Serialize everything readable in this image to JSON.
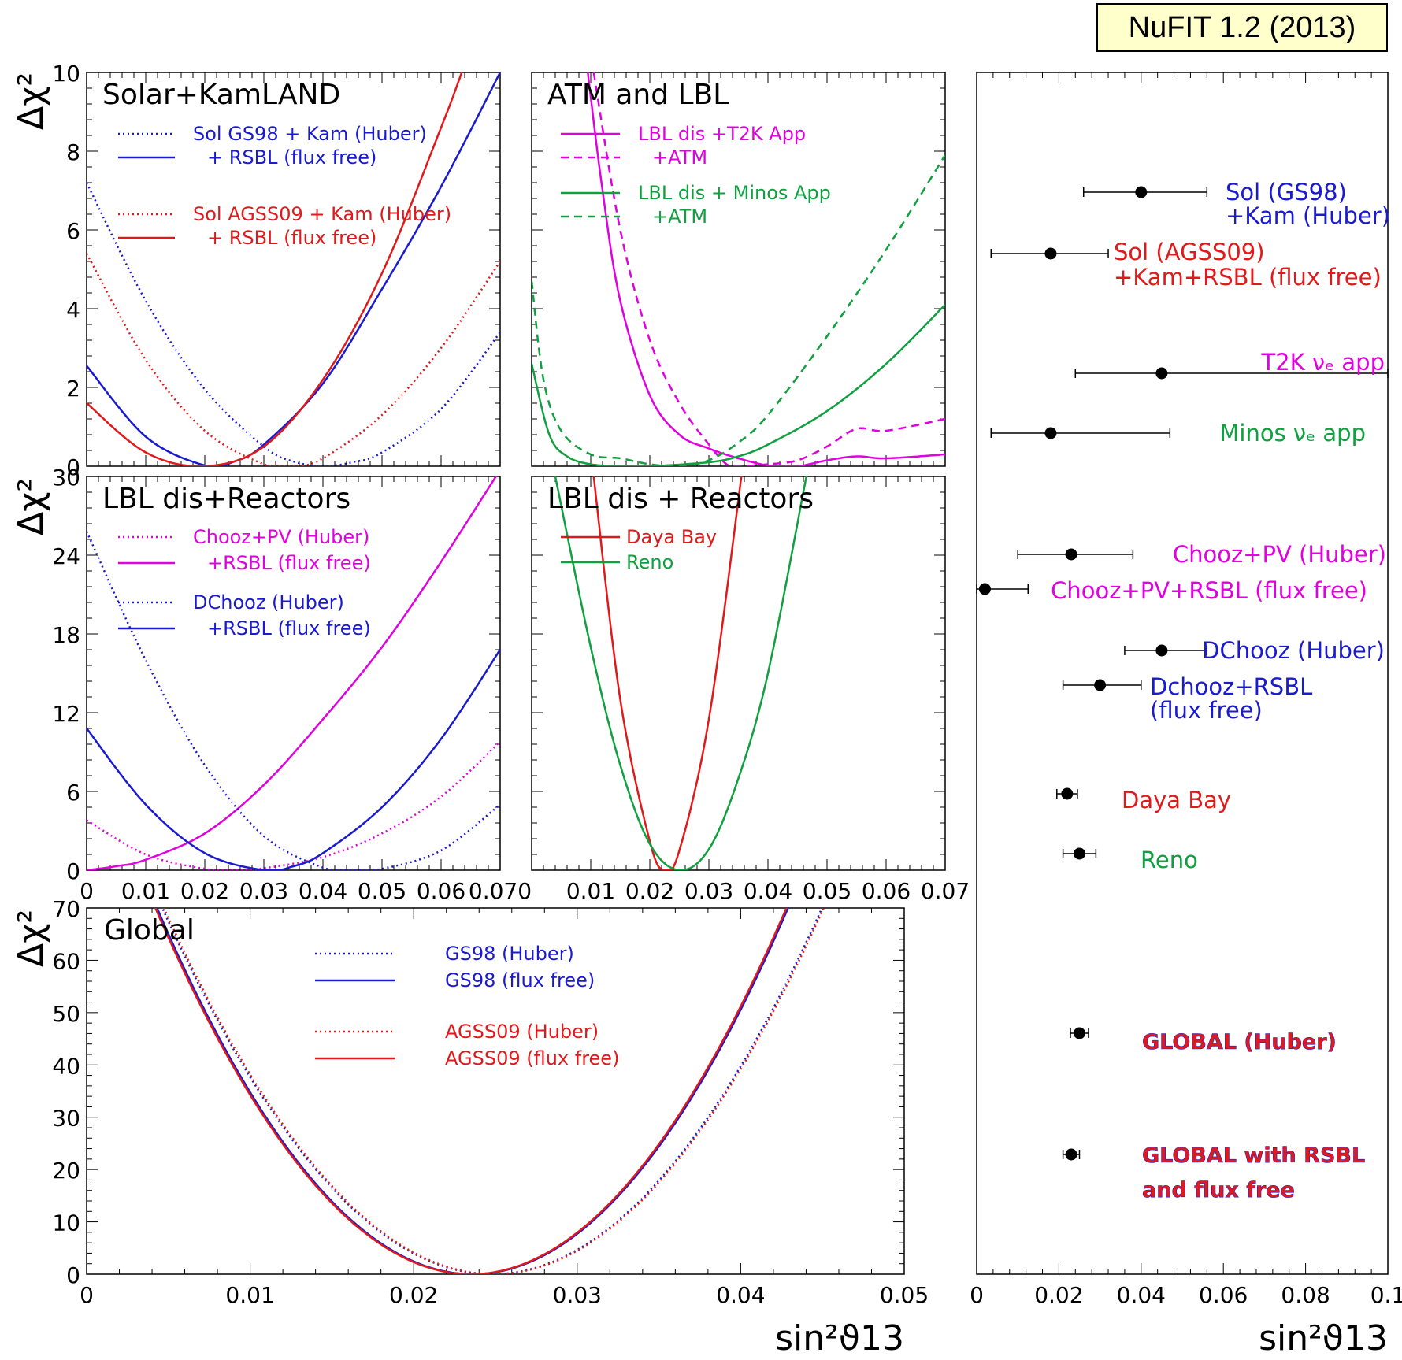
{
  "version_tag": "NuFIT 1.2 (2013)",
  "colors": {
    "blue": "#1a1ad0",
    "red": "#e01a1a",
    "magenta": "#e000e0",
    "green": "#10a040",
    "black": "#000000"
  },
  "chart_data": [
    {
      "id": "solar",
      "type": "line",
      "title": "Solar+KamLAND",
      "ylabel": "Δχ²",
      "xlim": [
        0,
        0.07
      ],
      "ylim": [
        0,
        10
      ],
      "yticks": [
        "0",
        "2",
        "4",
        "6",
        "8",
        "10"
      ],
      "legend": [
        {
          "text": "Sol GS98 + Kam (Huber)",
          "color": "#1a1ad0",
          "style": "dotted"
        },
        {
          "text": "+ RSBL (flux free)",
          "color": "#1a1ad0",
          "style": "solid"
        },
        {
          "text": "Sol AGSS09 + Kam (Huber)",
          "color": "#e01a1a",
          "style": "dotted"
        },
        {
          "text": "+ RSBL (flux free)",
          "color": "#e01a1a",
          "style": "solid"
        }
      ],
      "series": [
        {
          "name": "Sol GS98 + Kam (Huber)",
          "color": "#1a1ad0",
          "style": "dotted",
          "x": [
            0,
            0.01,
            0.02,
            0.03,
            0.035,
            0.04,
            0.045,
            0.05,
            0.06,
            0.07
          ],
          "y": [
            7.2,
            4.2,
            1.95,
            0.5,
            0.12,
            0.0,
            0.1,
            0.35,
            1.45,
            3.4
          ]
        },
        {
          "name": "+ RSBL (flux free)",
          "color": "#1a1ad0",
          "style": "solid",
          "x": [
            0,
            0.01,
            0.02,
            0.025,
            0.03,
            0.04,
            0.05,
            0.06,
            0.07
          ],
          "y": [
            2.55,
            0.75,
            0.02,
            0.12,
            0.55,
            2.1,
            4.5,
            7.1,
            10.0
          ]
        },
        {
          "name": "Sol AGSS09 + Kam (Huber)",
          "color": "#e01a1a",
          "style": "dotted",
          "x": [
            0,
            0.01,
            0.02,
            0.03,
            0.035,
            0.04,
            0.05,
            0.06,
            0.07
          ],
          "y": [
            5.4,
            2.7,
            0.9,
            0.05,
            0.0,
            0.2,
            1.3,
            3.0,
            5.2
          ]
        },
        {
          "name": "+ RSBL (flux free)",
          "color": "#e01a1a",
          "style": "solid",
          "x": [
            0,
            0.01,
            0.02,
            0.03,
            0.04,
            0.05,
            0.06,
            0.0635
          ],
          "y": [
            1.6,
            0.35,
            0.0,
            0.5,
            2.2,
            4.9,
            8.6,
            10.0
          ]
        }
      ]
    },
    {
      "id": "atm",
      "type": "line",
      "title": "ATM  and LBL",
      "xlim": [
        0,
        0.07
      ],
      "ylim": [
        0,
        10
      ],
      "legend": [
        {
          "text": "LBL dis +T2K App",
          "color": "#e000e0",
          "style": "solid"
        },
        {
          "text": "+ATM",
          "color": "#e000e0",
          "style": "dashed"
        },
        {
          "text": "LBL dis + Minos App",
          "color": "#10a040",
          "style": "solid"
        },
        {
          "text": "+ATM",
          "color": "#10a040",
          "style": "dashed"
        }
      ],
      "series": [
        {
          "name": "LBL dis +T2K App",
          "color": "#e000e0",
          "style": "solid",
          "x": [
            0.0095,
            0.012,
            0.015,
            0.02,
            0.025,
            0.03,
            0.035,
            0.04,
            0.045,
            0.05,
            0.055,
            0.06,
            0.07
          ],
          "y": [
            10.0,
            7.0,
            4.2,
            1.8,
            0.8,
            0.45,
            0.2,
            0.02,
            0.0,
            0.15,
            0.25,
            0.2,
            0.3
          ]
        },
        {
          "name": "+ATM",
          "color": "#e000e0",
          "style": "dashed",
          "x": [
            0.0105,
            0.015,
            0.02,
            0.025,
            0.03,
            0.033,
            0.035,
            0.04,
            0.045,
            0.05,
            0.055,
            0.06,
            0.07
          ],
          "y": [
            10.0,
            6.0,
            3.2,
            1.6,
            0.55,
            0.05,
            0.0,
            0.05,
            0.15,
            0.5,
            0.95,
            0.9,
            1.2
          ]
        },
        {
          "name": "LBL dis + Minos App",
          "color": "#10a040",
          "style": "solid",
          "x": [
            0,
            0.003,
            0.006,
            0.01,
            0.015,
            0.02,
            0.03,
            0.035,
            0.04,
            0.05,
            0.06,
            0.07
          ],
          "y": [
            2.6,
            0.8,
            0.25,
            0.05,
            0.0,
            0.0,
            0.1,
            0.25,
            0.55,
            1.4,
            2.6,
            4.1
          ]
        },
        {
          "name": "+ATM",
          "color": "#10a040",
          "style": "dashed",
          "x": [
            0,
            0.002,
            0.005,
            0.01,
            0.015,
            0.02,
            0.025,
            0.03,
            0.035,
            0.04,
            0.05,
            0.06,
            0.07
          ],
          "y": [
            4.7,
            2.2,
            0.9,
            0.3,
            0.2,
            0.05,
            0.0,
            0.15,
            0.6,
            1.3,
            3.3,
            5.5,
            7.9
          ]
        }
      ]
    },
    {
      "id": "lbl_reactors",
      "type": "line",
      "title": "LBL dis+Reactors",
      "ylabel": "Δχ²",
      "xlim": [
        0,
        0.07
      ],
      "ylim": [
        0,
        30
      ],
      "yticks": [
        "0",
        "6",
        "12",
        "18",
        "24",
        "30"
      ],
      "xticks": [
        "0",
        "0.01",
        "0.02",
        "0.03",
        "0.04",
        "0.05",
        "0.06",
        "0.070"
      ],
      "legend": [
        {
          "text": "Chooz+PV (Huber)",
          "color": "#e000e0",
          "style": "dotted"
        },
        {
          "text": "+RSBL (flux free)",
          "color": "#e000e0",
          "style": "solid"
        },
        {
          "text": "DChooz (Huber)",
          "color": "#1a1ad0",
          "style": "dotted"
        },
        {
          "text": "+RSBL (flux free)",
          "color": "#1a1ad0",
          "style": "solid"
        }
      ],
      "series": [
        {
          "name": "Chooz+PV (Huber)",
          "color": "#e000e0",
          "style": "dotted",
          "x": [
            0,
            0.01,
            0.02,
            0.025,
            0.03,
            0.04,
            0.05,
            0.06,
            0.07
          ],
          "y": [
            3.8,
            1.2,
            0.1,
            0.0,
            0.15,
            1.0,
            2.8,
            5.6,
            9.8
          ]
        },
        {
          "name": "+RSBL (flux free)",
          "color": "#e000e0",
          "style": "solid",
          "x": [
            0,
            0.005,
            0.01,
            0.02,
            0.03,
            0.04,
            0.05,
            0.06,
            0.07
          ],
          "y": [
            0.0,
            0.3,
            0.8,
            2.8,
            6.5,
            11.5,
            17.0,
            23.5,
            30.5
          ]
        },
        {
          "name": "DChooz (Huber)",
          "color": "#1a1ad0",
          "style": "dotted",
          "x": [
            0,
            0.01,
            0.02,
            0.03,
            0.04,
            0.045,
            0.05,
            0.06,
            0.07
          ],
          "y": [
            25.8,
            16.0,
            8.0,
            2.6,
            0.2,
            0.0,
            0.1,
            1.5,
            5.0
          ]
        },
        {
          "name": "+RSBL (flux free)",
          "color": "#1a1ad0",
          "style": "solid",
          "x": [
            0,
            0.01,
            0.02,
            0.03,
            0.035,
            0.04,
            0.05,
            0.06,
            0.07
          ],
          "y": [
            10.8,
            5.0,
            1.3,
            0.0,
            0.3,
            1.3,
            4.8,
            10.0,
            16.8
          ]
        }
      ]
    },
    {
      "id": "reactors",
      "type": "line",
      "title": "LBL dis + Reactors",
      "xlim": [
        0,
        0.07
      ],
      "ylim": [
        0,
        30
      ],
      "xticks": [
        "0.01",
        "0.02",
        "0.03",
        "0.04",
        "0.05",
        "0.06",
        "0.07"
      ],
      "legend": [
        {
          "text": "Daya Bay",
          "color": "#e01a1a",
          "style": "solid"
        },
        {
          "text": "Reno",
          "color": "#10a040",
          "style": "solid"
        }
      ],
      "series": [
        {
          "name": "Daya Bay",
          "color": "#e01a1a",
          "style": "solid",
          "x": [
            0.0105,
            0.015,
            0.02,
            0.0225,
            0.025,
            0.03,
            0.0355
          ],
          "y": [
            30,
            13,
            2.2,
            0,
            1.5,
            11.5,
            30
          ]
        },
        {
          "name": "Reno",
          "color": "#10a040",
          "style": "solid",
          "x": [
            0.004,
            0.01,
            0.015,
            0.02,
            0.025,
            0.03,
            0.035,
            0.04,
            0.0465
          ],
          "y": [
            30,
            17,
            8,
            2,
            0,
            1.6,
            7,
            15,
            30
          ]
        }
      ]
    },
    {
      "id": "global",
      "type": "line",
      "title": "Global",
      "ylabel": "Δχ²",
      "xlabel": "sin²ϑ13",
      "xlim": [
        0,
        0.05
      ],
      "ylim": [
        0,
        70
      ],
      "yticks": [
        "0",
        "10",
        "20",
        "30",
        "40",
        "50",
        "60",
        "70"
      ],
      "xticks": [
        "0",
        "0.01",
        "0.02",
        "0.03",
        "0.04",
        "0.05"
      ],
      "legend": [
        {
          "text": "GS98 (Huber)",
          "color": "#1a1ad0",
          "style": "dotted"
        },
        {
          "text": "GS98 (flux free)",
          "color": "#1a1ad0",
          "style": "solid"
        },
        {
          "text": "AGSS09 (Huber)",
          "color": "#e01a1a",
          "style": "dotted"
        },
        {
          "text": "AGSS09 (flux free)",
          "color": "#e01a1a",
          "style": "solid"
        }
      ],
      "series": [
        {
          "name": "GS98 (Huber)",
          "color": "#1a1ad0",
          "style": "dotted",
          "min_x": 0.0248,
          "curvature": 172000,
          "x_range": [
            0.0,
            0.05
          ],
          "y_cap": 70
        },
        {
          "name": "GS98 (flux free)",
          "color": "#1a1ad0",
          "style": "solid",
          "min_x": 0.0236,
          "curvature": 188000,
          "x_range": [
            0.0,
            0.05
          ],
          "y_cap": 70
        },
        {
          "name": "AGSS09 (Huber)",
          "color": "#e01a1a",
          "style": "dotted",
          "min_x": 0.0249,
          "curvature": 172000,
          "x_range": [
            0.0,
            0.05
          ],
          "y_cap": 70
        },
        {
          "name": "AGSS09 (flux free)",
          "color": "#e01a1a",
          "style": "solid",
          "min_x": 0.0235,
          "curvature": 188000,
          "x_range": [
            0.0,
            0.05
          ],
          "y_cap": 70
        }
      ]
    },
    {
      "id": "summary",
      "type": "scatter",
      "xlabel": "sin²ϑ13",
      "xlim": [
        0,
        0.1
      ],
      "xticks": [
        "0",
        "0.02",
        "0.04",
        "0.06",
        "0.08",
        "0.1"
      ],
      "points": [
        {
          "label": [
            "Sol (GS98)",
            "+Kam (Huber)"
          ],
          "color": "#1a1ad0",
          "x": 0.04,
          "lo": 0.026,
          "hi": 0.056
        },
        {
          "label": [
            "Sol (AGSS09)",
            "+Kam+RSBL (flux free)"
          ],
          "color": "#e01a1a",
          "x": 0.018,
          "lo": 0.0035,
          "hi": 0.032
        },
        {
          "label": [
            "T2K νₑ app"
          ],
          "color": "#e000e0",
          "x": 0.045,
          "lo": 0.024,
          "hi": 0.1
        },
        {
          "label": [
            "Minos νₑ app"
          ],
          "color": "#10a040",
          "x": 0.018,
          "lo": 0.0035,
          "hi": 0.047
        },
        {
          "label": [
            "Chooz+PV (Huber)"
          ],
          "color": "#e000e0",
          "x": 0.023,
          "lo": 0.01,
          "hi": 0.038
        },
        {
          "label": [
            "Chooz+PV+RSBL (flux free)"
          ],
          "color": "#e000e0",
          "x": 0.002,
          "lo": 0.0,
          "hi": 0.0125
        },
        {
          "label": [
            "DChooz (Huber)"
          ],
          "color": "#1a1ad0",
          "x": 0.045,
          "lo": 0.036,
          "hi": 0.056
        },
        {
          "label": [
            "Dchooz+RSBL",
            "(flux free)"
          ],
          "color": "#1a1ad0",
          "x": 0.03,
          "lo": 0.021,
          "hi": 0.04
        },
        {
          "label": [
            "Daya Bay"
          ],
          "color": "#e01a1a",
          "x": 0.022,
          "lo": 0.0195,
          "hi": 0.0245
        },
        {
          "label": [
            "Reno"
          ],
          "color": "#10a040",
          "x": 0.025,
          "lo": 0.021,
          "hi": 0.029
        },
        {
          "label": [
            "GLOBAL (Huber)"
          ],
          "color": "#e01a1a",
          "x": 0.025,
          "lo": 0.0228,
          "hi": 0.0272
        },
        {
          "label": [
            "GLOBAL with RSBL",
            "and flux free"
          ],
          "color": "#e01a1a",
          "x": 0.023,
          "lo": 0.021,
          "hi": 0.025
        }
      ]
    }
  ]
}
